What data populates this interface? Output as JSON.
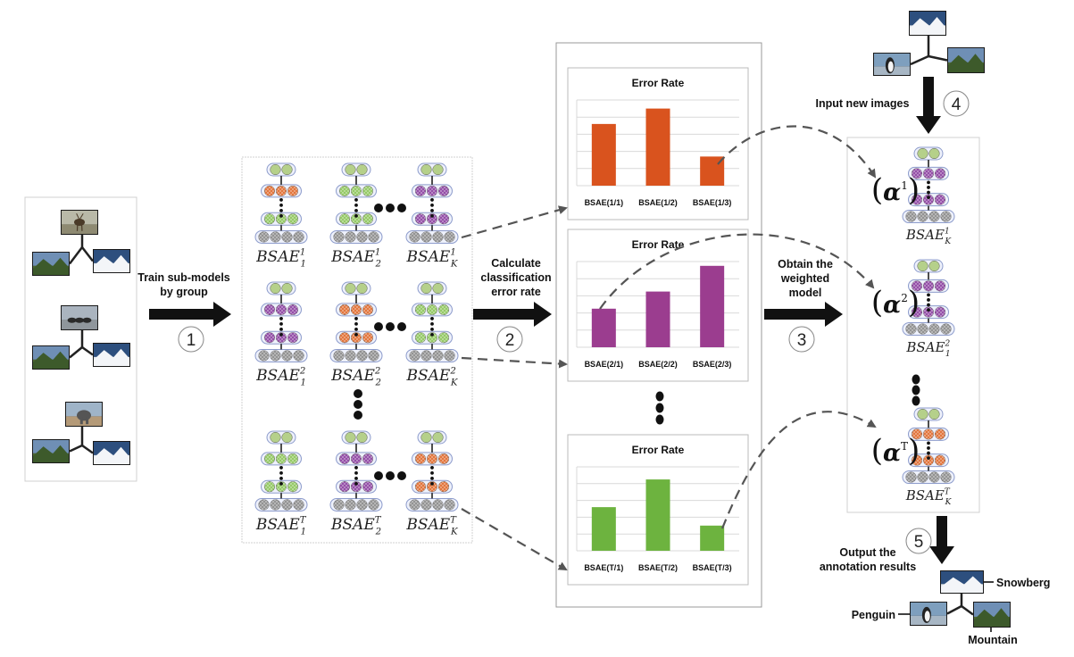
{
  "steps": {
    "s1": {
      "number": "1",
      "label_lines": [
        "Train sub-models",
        "by group"
      ]
    },
    "s2": {
      "number": "2",
      "label_lines": [
        "Calculate",
        "classification",
        "error rate"
      ]
    },
    "s3": {
      "number": "3",
      "label_lines": [
        "Obtain the",
        "weighted",
        "model"
      ]
    },
    "s4": {
      "number": "4",
      "label": "Input new images"
    },
    "s5": {
      "number": "5",
      "label_lines": [
        "Output the",
        "annotation results"
      ]
    }
  },
  "models": {
    "rows": [
      {
        "labels": [
          {
            "base": "BSAE",
            "sup": "1",
            "sub": "1"
          },
          {
            "base": "BSAE",
            "sup": "1",
            "sub": "2"
          },
          {
            "base": "BSAE",
            "sup": "1",
            "sub": "K"
          }
        ],
        "colors": [
          [
            "#e06a2c",
            "#8cc55a"
          ],
          [
            "#8cc55a",
            "#8cc55a"
          ],
          [
            "#8b3fa0",
            "#8b3fa0"
          ]
        ]
      },
      {
        "labels": [
          {
            "base": "BSAE",
            "sup": "2",
            "sub": "1"
          },
          {
            "base": "BSAE",
            "sup": "2",
            "sub": "2"
          },
          {
            "base": "BSAE",
            "sup": "2",
            "sub": "K"
          }
        ],
        "colors": [
          [
            "#8b3fa0",
            "#8b3fa0"
          ],
          [
            "#e06a2c",
            "#e06a2c"
          ],
          [
            "#8cc55a",
            "#8cc55a"
          ]
        ]
      },
      {
        "labels": [
          {
            "base": "BSAE",
            "sup": "T",
            "sub": "1"
          },
          {
            "base": "BSAE",
            "sup": "T",
            "sub": "2"
          },
          {
            "base": "BSAE",
            "sup": "T",
            "sub": "K"
          }
        ],
        "colors": [
          [
            "#8cc55a",
            "#8cc55a"
          ],
          [
            "#8b3fa0",
            "#8b3fa0"
          ],
          [
            "#e06a2c",
            "#e06a2c"
          ]
        ]
      }
    ]
  },
  "chart_data": [
    {
      "type": "bar",
      "title": "Error Rate",
      "categories": [
        "BSAE(1/1)",
        "BSAE(1/2)",
        "BSAE(1/3)"
      ],
      "values": [
        0.72,
        0.9,
        0.34
      ],
      "ylim": [
        0,
        1
      ],
      "color": "#d9531e"
    },
    {
      "type": "bar",
      "title": "Error Rate",
      "categories": [
        "BSAE(2/1)",
        "BSAE(2/2)",
        "BSAE(2/3)"
      ],
      "values": [
        0.45,
        0.65,
        0.95
      ],
      "ylim": [
        0,
        1
      ],
      "color": "#9b3d8f"
    },
    {
      "type": "bar",
      "title": "Error Rate",
      "categories": [
        "BSAE(T/1)",
        "BSAE(T/2)",
        "BSAE(T/3)"
      ],
      "values": [
        0.52,
        0.85,
        0.3
      ],
      "ylim": [
        0,
        1
      ],
      "color": "#6db33f"
    }
  ],
  "weighted": [
    {
      "alpha_sup": "1",
      "label": {
        "base": "BSAE",
        "sup": "1",
        "sub": "K"
      },
      "color": "#8b3fa0"
    },
    {
      "alpha_sup": "2",
      "label": {
        "base": "BSAE",
        "sup": "2",
        "sub": "1"
      },
      "color": "#8b3fa0"
    },
    {
      "alpha_sup": "T",
      "label": {
        "base": "BSAE",
        "sup": "T",
        "sub": "K"
      },
      "color": "#e06a2c"
    }
  ],
  "alpha_symbol": "α",
  "annotations": {
    "top": "Snowberg",
    "left": "Penguin",
    "bottom": "Mountain"
  },
  "colors": {
    "orange": "#e06a2c",
    "green": "#8cc55a",
    "purple": "#8b3fa0",
    "gray": "#8a8a8a",
    "light_green": "#b5d08a"
  }
}
